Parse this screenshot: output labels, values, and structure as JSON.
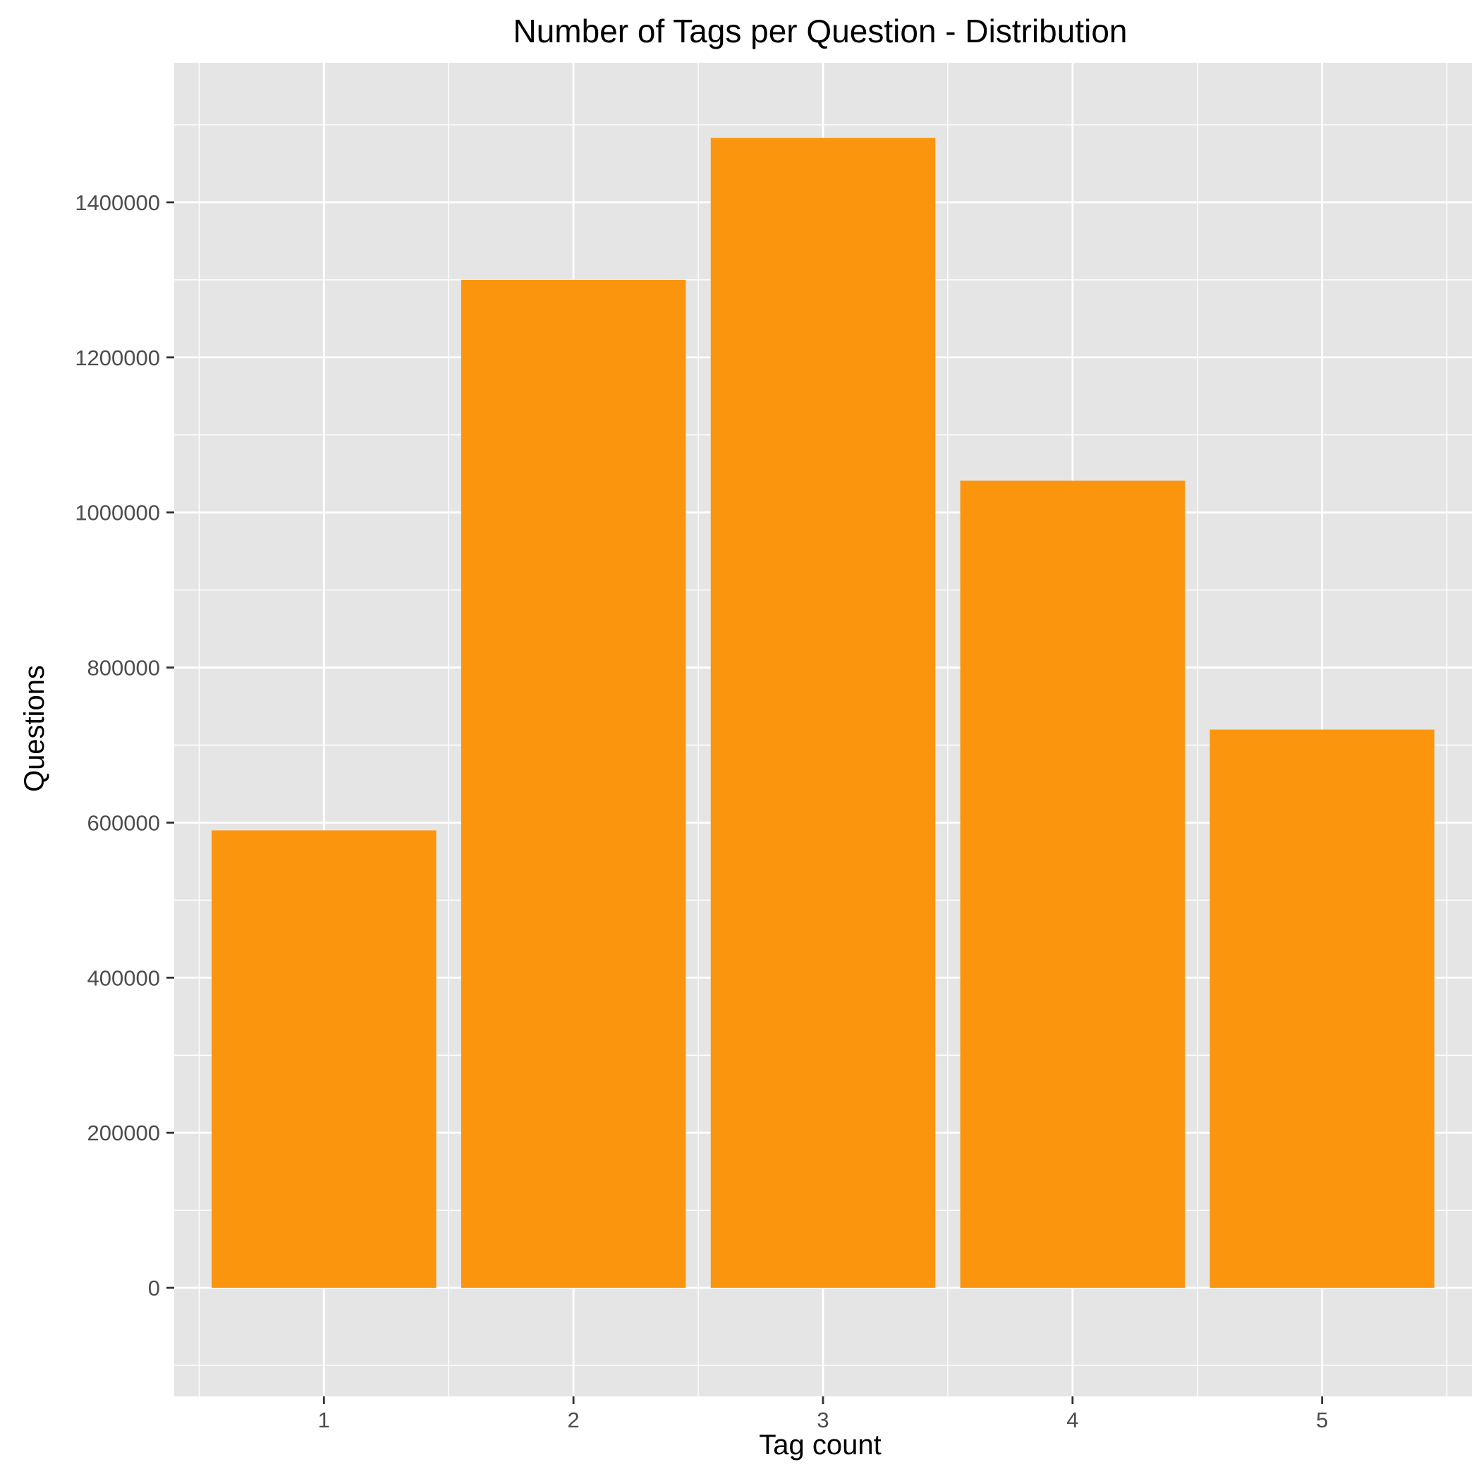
{
  "chart_data": {
    "type": "bar",
    "title": "Number of Tags per Question - Distribution",
    "xlabel": "Tag count",
    "ylabel": "Questions",
    "categories": [
      "1",
      "2",
      "3",
      "4",
      "5"
    ],
    "values": [
      590000,
      1300000,
      1483000,
      1041000,
      720000
    ],
    "ylim": [
      -140000,
      1580000
    ],
    "yticks": [
      0,
      200000,
      400000,
      600000,
      800000,
      1000000,
      1200000,
      1400000
    ],
    "ytick_labels": [
      "0",
      "200000",
      "400000",
      "600000",
      "800000",
      "1000000",
      "1200000",
      "1400000"
    ],
    "grid": true,
    "legend": "none",
    "colors": {
      "bar": "#fb950d",
      "panel": "#e5e5e5",
      "grid": "#ffffff"
    }
  }
}
